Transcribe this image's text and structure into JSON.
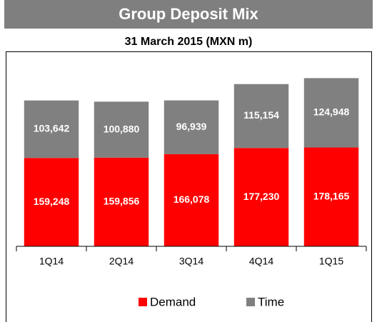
{
  "chart_data": {
    "type": "bar",
    "stacked": true,
    "title": "Group Deposit Mix",
    "subtitle": "31 March 2015 (MXN m)",
    "categories": [
      "1Q14",
      "2Q14",
      "3Q14",
      "4Q14",
      "1Q15"
    ],
    "series": [
      {
        "name": "Demand",
        "color": "#ff0000",
        "values": [
          159248,
          159856,
          166078,
          177230,
          178165
        ],
        "value_labels": [
          "159,248",
          "159,856",
          "166,078",
          "177,230",
          "178,165"
        ]
      },
      {
        "name": "Time",
        "color": "#808080",
        "values": [
          103642,
          100880,
          96939,
          115154,
          124948
        ],
        "value_labels": [
          "103,642",
          "100,880",
          "96,939",
          "115,154",
          "124,948"
        ]
      }
    ],
    "ylim": [
      0,
      350000
    ],
    "legend": "bottom"
  }
}
